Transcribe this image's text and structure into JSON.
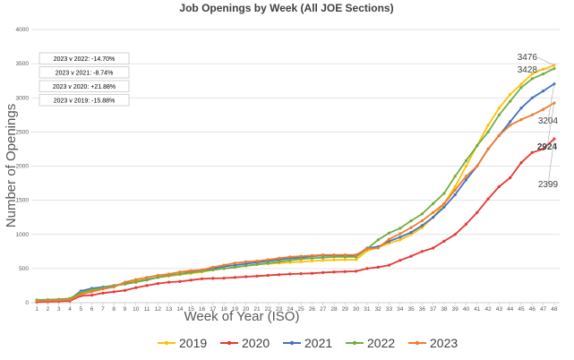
{
  "chart_data": {
    "type": "line",
    "title": "Job Openings by Week (All JOE Sections)",
    "xlabel": "Week of Year (ISO)",
    "ylabel": "Number of Openings",
    "ylim": [
      0,
      4000
    ],
    "yticks": [
      0,
      500,
      1000,
      1500,
      2000,
      2500,
      3000,
      3500,
      4000
    ],
    "x": [
      1,
      2,
      3,
      4,
      5,
      6,
      7,
      8,
      9,
      10,
      11,
      12,
      13,
      14,
      15,
      16,
      17,
      18,
      19,
      20,
      21,
      22,
      23,
      24,
      25,
      26,
      27,
      28,
      29,
      30,
      31,
      32,
      33,
      34,
      35,
      36,
      37,
      38,
      39,
      40,
      41,
      42,
      43,
      44,
      45,
      46,
      47,
      48
    ],
    "grid": "horizontal",
    "legend_position": "bottom",
    "series": [
      {
        "name": "2019",
        "color": "#FFC000",
        "values": [
          20,
          25,
          30,
          35,
          140,
          170,
          210,
          240,
          290,
          320,
          340,
          370,
          390,
          410,
          430,
          450,
          480,
          500,
          520,
          540,
          560,
          570,
          580,
          590,
          600,
          610,
          620,
          625,
          630,
          630,
          760,
          810,
          870,
          920,
          1000,
          1100,
          1250,
          1450,
          1700,
          2000,
          2300,
          2600,
          2850,
          3050,
          3200,
          3350,
          3420,
          3476
        ]
      },
      {
        "name": "2020",
        "color": "#E53935",
        "values": [
          10,
          15,
          20,
          25,
          100,
          110,
          140,
          160,
          180,
          220,
          250,
          280,
          300,
          310,
          330,
          350,
          355,
          360,
          370,
          380,
          390,
          400,
          410,
          420,
          425,
          430,
          440,
          450,
          455,
          460,
          500,
          520,
          550,
          620,
          680,
          750,
          800,
          900,
          1000,
          1150,
          1320,
          1520,
          1700,
          1830,
          2050,
          2200,
          2250,
          2399
        ]
      },
      {
        "name": "2021",
        "color": "#4472C4",
        "values": [
          30,
          35,
          40,
          50,
          170,
          210,
          230,
          250,
          280,
          300,
          340,
          370,
          400,
          420,
          450,
          470,
          500,
          530,
          550,
          570,
          590,
          610,
          630,
          650,
          660,
          680,
          690,
          690,
          690,
          690,
          800,
          820,
          900,
          960,
          1030,
          1130,
          1250,
          1400,
          1580,
          1800,
          2000,
          2250,
          2450,
          2650,
          2850,
          3000,
          3100,
          3204
        ]
      },
      {
        "name": "2022",
        "color": "#70AD47",
        "values": [
          40,
          45,
          50,
          60,
          150,
          190,
          220,
          250,
          270,
          300,
          330,
          370,
          400,
          420,
          440,
          460,
          480,
          500,
          520,
          540,
          560,
          580,
          600,
          620,
          640,
          650,
          660,
          670,
          670,
          670,
          790,
          920,
          1020,
          1090,
          1200,
          1300,
          1450,
          1600,
          1850,
          2080,
          2300,
          2500,
          2750,
          2950,
          3150,
          3280,
          3350,
          3428
        ]
      },
      {
        "name": "2023",
        "color": "#ED7D31",
        "values": [
          25,
          30,
          35,
          40,
          120,
          160,
          200,
          230,
          300,
          340,
          370,
          400,
          420,
          450,
          470,
          480,
          520,
          550,
          580,
          600,
          610,
          630,
          650,
          670,
          680,
          690,
          700,
          700,
          700,
          700,
          790,
          800,
          930,
          1010,
          1100,
          1200,
          1320,
          1450,
          1650,
          1850,
          2000,
          2250,
          2450,
          2600,
          2680,
          2750,
          2830,
          2924
        ]
      }
    ],
    "annotations": [
      {
        "text": "2023 v 2022: -14.70%"
      },
      {
        "text": "2023 v 2021: -8.74%"
      },
      {
        "text": "2023 v 2020: +21.88%"
      },
      {
        "text": "2023 v 2019: -15.88%"
      }
    ],
    "end_labels": [
      {
        "series": "2019",
        "text": "3476"
      },
      {
        "series": "2022",
        "text": "3428"
      },
      {
        "series": "2021",
        "text": "3204"
      },
      {
        "series": "2023",
        "text": "2924"
      },
      {
        "series": "2020",
        "text": "2399"
      }
    ]
  }
}
